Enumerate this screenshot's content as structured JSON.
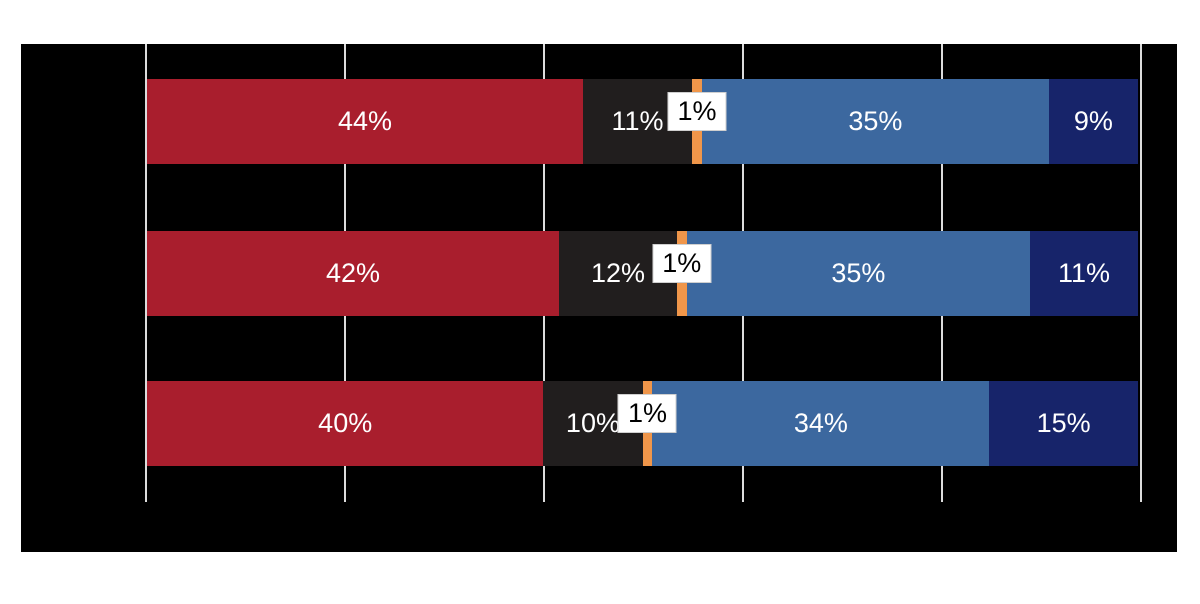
{
  "chart_data": {
    "type": "bar",
    "orientation": "horizontal",
    "stacked": true,
    "title": "",
    "xlabel": "",
    "ylabel": "",
    "categories": [
      "",
      "",
      ""
    ],
    "xlim": [
      0,
      100
    ],
    "gridlines": {
      "positions_pct": [
        0,
        20,
        40,
        60,
        80,
        100
      ],
      "color": "#DCDCDC",
      "visible": true
    },
    "plot_background": "#000000",
    "canvas_background": "#FFFFFF",
    "legend": "none-visible",
    "series": [
      {
        "name": "red-segment",
        "color": "#A91E2D",
        "values": [
          44,
          42,
          40
        ],
        "labels": [
          "44%",
          "42%",
          "40%"
        ],
        "label_color": "#FFFFFF",
        "label_style": "inside"
      },
      {
        "name": "dark-segment",
        "color": "#211E1E",
        "values": [
          11,
          12,
          10
        ],
        "labels": [
          "11%",
          "12%",
          "10%"
        ],
        "label_color": "#FFFFFF",
        "label_style": "inside"
      },
      {
        "name": "orange-segment",
        "color": "#F0964A",
        "values": [
          1,
          1,
          1
        ],
        "labels": [
          "1%",
          "1%",
          "1%"
        ],
        "label_color": "#000000",
        "label_style": "callout",
        "callout_background": "#FFFFFF"
      },
      {
        "name": "blue-segment",
        "color": "#3C689F",
        "values": [
          35,
          35,
          34
        ],
        "labels": [
          "35%",
          "35%",
          "34%"
        ],
        "label_color": "#FFFFFF",
        "label_style": "inside"
      },
      {
        "name": "navy-segment",
        "color": "#17246A",
        "values": [
          9,
          11,
          15
        ],
        "labels": [
          "9%",
          "11%",
          "15%"
        ],
        "label_color": "#FFFFFF",
        "label_style": "inside"
      }
    ]
  }
}
